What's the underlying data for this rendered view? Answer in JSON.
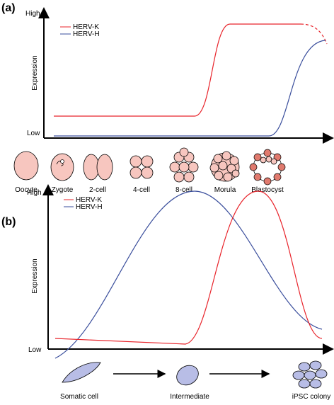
{
  "panels": [
    {
      "label": "(a)",
      "y_axis": {
        "title": "Expression",
        "high": "High",
        "low": "Low"
      },
      "legend": [
        "HERV-K",
        "HERV-H"
      ],
      "stages": [
        "Oocyte",
        "Zygote",
        "2-cell",
        "4-cell",
        "8-cell",
        "Morula",
        "Blastocyst"
      ]
    },
    {
      "label": "(b)",
      "y_axis": {
        "title": "Expression",
        "high": "High",
        "low": "Low"
      },
      "legend": [
        "HERV-K",
        "HERV-H"
      ],
      "stages": [
        "Somatic cell",
        "Intermediate",
        "iPSC colony"
      ]
    }
  ]
}
